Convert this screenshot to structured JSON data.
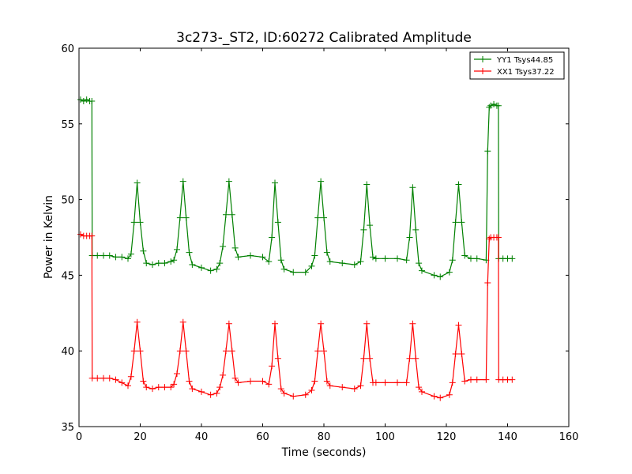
{
  "chart_data": {
    "type": "line",
    "title": "3c273-_ST2, ID:60272 Calibrated Amplitude",
    "xlabel": "Time (seconds)",
    "ylabel": "Power in Kelvin",
    "xlim": [
      0,
      160
    ],
    "ylim": [
      35,
      60
    ],
    "xticks": [
      0,
      20,
      40,
      60,
      80,
      100,
      120,
      140,
      160
    ],
    "yticks": [
      35,
      40,
      45,
      50,
      55,
      60
    ],
    "grid": false,
    "legend_position": "top-right",
    "marker": "plus",
    "series": [
      {
        "name": "YY1 Tsys44.85",
        "color": "#008000",
        "points": [
          [
            0.5,
            56.6
          ],
          [
            1.5,
            56.5
          ],
          [
            2.5,
            56.6
          ],
          [
            3.5,
            56.5
          ],
          [
            4.2,
            56.5
          ],
          [
            4.3,
            46.3
          ],
          [
            6,
            46.3
          ],
          [
            8,
            46.3
          ],
          [
            10,
            46.3
          ],
          [
            12,
            46.2
          ],
          [
            14,
            46.2
          ],
          [
            16,
            46.1
          ],
          [
            17,
            46.4
          ],
          [
            18,
            48.5
          ],
          [
            19,
            51.1
          ],
          [
            20,
            48.5
          ],
          [
            21,
            46.6
          ],
          [
            22,
            45.8
          ],
          [
            24,
            45.7
          ],
          [
            26,
            45.8
          ],
          [
            28,
            45.8
          ],
          [
            30,
            45.9
          ],
          [
            31,
            46.0
          ],
          [
            32,
            46.7
          ],
          [
            33,
            48.8
          ],
          [
            34,
            51.2
          ],
          [
            35,
            48.8
          ],
          [
            36,
            46.5
          ],
          [
            37,
            45.7
          ],
          [
            40,
            45.5
          ],
          [
            43,
            45.3
          ],
          [
            45,
            45.4
          ],
          [
            46,
            45.8
          ],
          [
            47,
            46.9
          ],
          [
            48,
            49.0
          ],
          [
            49,
            51.2
          ],
          [
            50,
            49.0
          ],
          [
            51,
            46.8
          ],
          [
            52,
            46.2
          ],
          [
            56,
            46.3
          ],
          [
            60,
            46.2
          ],
          [
            62,
            45.9
          ],
          [
            63,
            47.5
          ],
          [
            64,
            51.1
          ],
          [
            65,
            48.5
          ],
          [
            66,
            46.0
          ],
          [
            67,
            45.4
          ],
          [
            70,
            45.2
          ],
          [
            74,
            45.2
          ],
          [
            76,
            45.6
          ],
          [
            77,
            46.3
          ],
          [
            78,
            48.8
          ],
          [
            79,
            51.2
          ],
          [
            80,
            48.8
          ],
          [
            81,
            46.5
          ],
          [
            82,
            45.9
          ],
          [
            86,
            45.8
          ],
          [
            90,
            45.7
          ],
          [
            92,
            45.9
          ],
          [
            93,
            48.0
          ],
          [
            94,
            51.0
          ],
          [
            95,
            48.3
          ],
          [
            96,
            46.2
          ],
          [
            97,
            46.1
          ],
          [
            100,
            46.1
          ],
          [
            104,
            46.1
          ],
          [
            107,
            46.0
          ],
          [
            108,
            47.5
          ],
          [
            109,
            50.8
          ],
          [
            110,
            48.0
          ],
          [
            111,
            45.8
          ],
          [
            112,
            45.3
          ],
          [
            116,
            45.0
          ],
          [
            118,
            44.9
          ],
          [
            121,
            45.2
          ],
          [
            122,
            46.0
          ],
          [
            123,
            48.5
          ],
          [
            124,
            51.0
          ],
          [
            125,
            48.5
          ],
          [
            126,
            46.3
          ],
          [
            128,
            46.1
          ],
          [
            130,
            46.1
          ],
          [
            133,
            46.0
          ],
          [
            133.5,
            53.2
          ],
          [
            134,
            56.1
          ],
          [
            134.5,
            56.2
          ],
          [
            135.5,
            56.3
          ],
          [
            136.5,
            56.2
          ],
          [
            137,
            56.2
          ],
          [
            137.1,
            46.1
          ],
          [
            138.5,
            46.1
          ],
          [
            140,
            46.1
          ],
          [
            141.5,
            46.1
          ]
        ]
      },
      {
        "name": "XX1 Tsys37.22",
        "color": "#ff0000",
        "points": [
          [
            0.5,
            47.7
          ],
          [
            1.5,
            47.6
          ],
          [
            2.5,
            47.6
          ],
          [
            3.5,
            47.6
          ],
          [
            4.2,
            47.6
          ],
          [
            4.3,
            38.2
          ],
          [
            6,
            38.2
          ],
          [
            8,
            38.2
          ],
          [
            10,
            38.2
          ],
          [
            12,
            38.1
          ],
          [
            14,
            37.9
          ],
          [
            16,
            37.7
          ],
          [
            17,
            38.3
          ],
          [
            18,
            40.0
          ],
          [
            19,
            41.9
          ],
          [
            20,
            40.0
          ],
          [
            21,
            38.0
          ],
          [
            22,
            37.6
          ],
          [
            24,
            37.5
          ],
          [
            26,
            37.6
          ],
          [
            28,
            37.6
          ],
          [
            30,
            37.6
          ],
          [
            31,
            37.8
          ],
          [
            32,
            38.5
          ],
          [
            33,
            40.0
          ],
          [
            34,
            41.9
          ],
          [
            35,
            40.0
          ],
          [
            36,
            38.0
          ],
          [
            37,
            37.5
          ],
          [
            40,
            37.3
          ],
          [
            43,
            37.1
          ],
          [
            45,
            37.2
          ],
          [
            46,
            37.6
          ],
          [
            47,
            38.4
          ],
          [
            48,
            40.0
          ],
          [
            49,
            41.8
          ],
          [
            50,
            40.0
          ],
          [
            51,
            38.2
          ],
          [
            52,
            37.9
          ],
          [
            56,
            38.0
          ],
          [
            60,
            38.0
          ],
          [
            62,
            37.8
          ],
          [
            63,
            39.0
          ],
          [
            64,
            41.8
          ],
          [
            65,
            39.5
          ],
          [
            66,
            37.5
          ],
          [
            67,
            37.2
          ],
          [
            70,
            37.0
          ],
          [
            74,
            37.1
          ],
          [
            76,
            37.4
          ],
          [
            77,
            38.0
          ],
          [
            78,
            40.0
          ],
          [
            79,
            41.8
          ],
          [
            80,
            40.0
          ],
          [
            81,
            38.0
          ],
          [
            82,
            37.7
          ],
          [
            86,
            37.6
          ],
          [
            90,
            37.5
          ],
          [
            92,
            37.7
          ],
          [
            93,
            39.5
          ],
          [
            94,
            41.8
          ],
          [
            95,
            39.5
          ],
          [
            96,
            37.9
          ],
          [
            97,
            37.9
          ],
          [
            100,
            37.9
          ],
          [
            104,
            37.9
          ],
          [
            107,
            37.9
          ],
          [
            108,
            39.5
          ],
          [
            109,
            41.8
          ],
          [
            110,
            39.5
          ],
          [
            111,
            37.6
          ],
          [
            112,
            37.3
          ],
          [
            116,
            37.0
          ],
          [
            118,
            36.9
          ],
          [
            121,
            37.1
          ],
          [
            122,
            37.9
          ],
          [
            123,
            39.8
          ],
          [
            124,
            41.7
          ],
          [
            125,
            39.8
          ],
          [
            126,
            38.0
          ],
          [
            128,
            38.1
          ],
          [
            130,
            38.1
          ],
          [
            133,
            38.1
          ],
          [
            133.5,
            44.5
          ],
          [
            134,
            47.4
          ],
          [
            134.5,
            47.5
          ],
          [
            135.5,
            47.5
          ],
          [
            136.5,
            47.5
          ],
          [
            137,
            47.5
          ],
          [
            137.1,
            38.1
          ],
          [
            138.5,
            38.1
          ],
          [
            140,
            38.1
          ],
          [
            141.5,
            38.1
          ]
        ]
      }
    ]
  }
}
